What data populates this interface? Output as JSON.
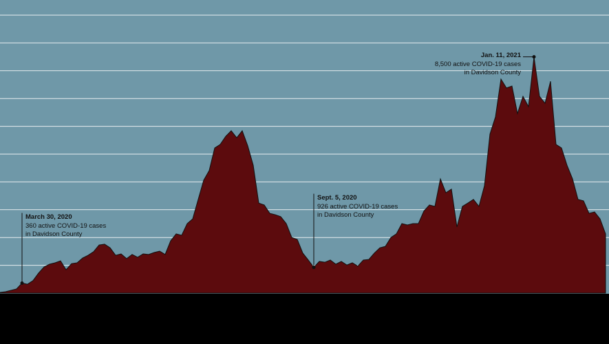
{
  "chart_data": {
    "type": "area",
    "values": [
      25,
      50,
      100,
      150,
      360,
      320,
      450,
      720,
      940,
      1040,
      1090,
      1160,
      840,
      1060,
      1090,
      1260,
      1360,
      1490,
      1730,
      1760,
      1630,
      1360,
      1410,
      1240,
      1390,
      1290,
      1410,
      1390,
      1460,
      1510,
      1390,
      1880,
      2130,
      2080,
      2500,
      2670,
      3370,
      4060,
      4410,
      5220,
      5350,
      5640,
      5840,
      5590,
      5840,
      5300,
      4600,
      3240,
      3170,
      2870,
      2820,
      2750,
      2500,
      2000,
      1930,
      1440,
      1190,
      926,
      1140,
      1110,
      1190,
      1040,
      1140,
      1010,
      1090,
      970,
      1190,
      1210,
      1440,
      1630,
      1680,
      2000,
      2130,
      2500,
      2450,
      2500,
      2500,
      2950,
      3170,
      3120,
      4110,
      3610,
      3740,
      2380,
      3120,
      3240,
      3370,
      3120,
      3860,
      5720,
      6340,
      7700,
      7380,
      7450,
      6460,
      7080,
      6710,
      8500,
      7080,
      6830,
      7620,
      5350,
      5220,
      4600,
      4110,
      3370,
      3320,
      2870,
      2920,
      2670,
      2130
    ],
    "color": "#5c0b0d",
    "ylim": [
      0,
      10000
    ],
    "yticks": [
      1000,
      2000,
      3000,
      4000,
      5000,
      6000,
      7000,
      8000,
      9000,
      10000
    ],
    "grid": true,
    "annotations": [
      {
        "date": "March 30, 2020",
        "lines": [
          "360 active COVID-19 cases",
          "in Davidson County"
        ],
        "align": "left"
      },
      {
        "date": "Sept. 5, 2020",
        "lines": [
          "926 active COVID-19 cases",
          "in Davidson County"
        ],
        "align": "left"
      },
      {
        "date": "Jan. 11, 2021",
        "lines": [
          "8,500 active COVID-19 cases",
          "in Davidson County"
        ],
        "align": "right"
      }
    ]
  }
}
